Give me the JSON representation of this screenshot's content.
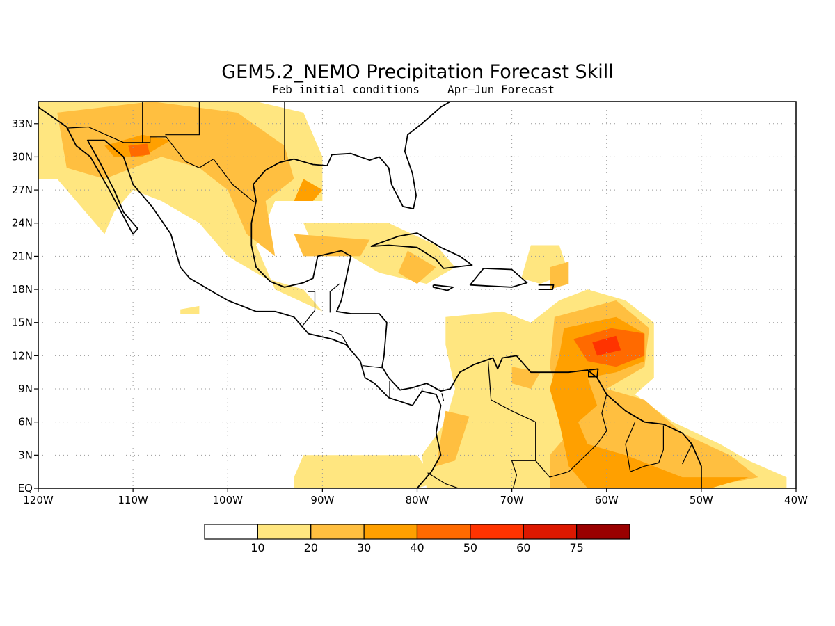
{
  "title": "GEM5.2_NEMO Precipitation Forecast Skill",
  "subtitle_left": "Feb initial conditions",
  "subtitle_right": "Apr–Jun Forecast",
  "map": {
    "lon_range": [
      -120,
      -40
    ],
    "lat_range": [
      0,
      35
    ],
    "x_ticks": [
      {
        "value": -120,
        "label": "120W"
      },
      {
        "value": -110,
        "label": "110W"
      },
      {
        "value": -100,
        "label": "100W"
      },
      {
        "value": -90,
        "label": "90W"
      },
      {
        "value": -80,
        "label": "80W"
      },
      {
        "value": -70,
        "label": "70W"
      },
      {
        "value": -60,
        "label": "60W"
      },
      {
        "value": -50,
        "label": "50W"
      },
      {
        "value": -40,
        "label": "40W"
      }
    ],
    "y_ticks": [
      {
        "value": 0,
        "label": "EQ"
      },
      {
        "value": 3,
        "label": "3N"
      },
      {
        "value": 6,
        "label": "6N"
      },
      {
        "value": 9,
        "label": "9N"
      },
      {
        "value": 12,
        "label": "12N"
      },
      {
        "value": 15,
        "label": "15N"
      },
      {
        "value": 18,
        "label": "18N"
      },
      {
        "value": 21,
        "label": "21N"
      },
      {
        "value": 24,
        "label": "24N"
      },
      {
        "value": 27,
        "label": "27N"
      },
      {
        "value": 30,
        "label": "30N"
      },
      {
        "value": 33,
        "label": "33N"
      }
    ],
    "grid": true
  },
  "colorbar": {
    "labels": [
      "10",
      "20",
      "30",
      "40",
      "50",
      "60",
      "75"
    ],
    "colors": [
      "#ffffff",
      "#ffe680",
      "#ffbf40",
      "#ffa000",
      "#ff6a00",
      "#ff3300",
      "#dd1800",
      "#9a0000"
    ]
  },
  "skill_regions": [
    {
      "level": 1,
      "points": [
        [
          -120,
          35
        ],
        [
          -97,
          35
        ],
        [
          -92,
          34
        ],
        [
          -90,
          30
        ],
        [
          -90,
          26
        ],
        [
          -95,
          26
        ],
        [
          -97,
          22
        ],
        [
          -95,
          18
        ],
        [
          -90,
          16
        ],
        [
          -92,
          18
        ],
        [
          -96,
          19
        ],
        [
          -100,
          21
        ],
        [
          -103,
          24
        ],
        [
          -107,
          26
        ],
        [
          -110,
          27
        ],
        [
          -112,
          25
        ],
        [
          -113,
          23
        ],
        [
          -116,
          26
        ],
        [
          -118,
          28
        ],
        [
          -120,
          28
        ]
      ]
    },
    {
      "level": 1,
      "points": [
        [
          -92,
          24
        ],
        [
          -83,
          24
        ],
        [
          -78,
          22
        ],
        [
          -76,
          20
        ],
        [
          -79,
          18.5
        ],
        [
          -84,
          19.5
        ],
        [
          -88,
          21.5
        ],
        [
          -91,
          22
        ]
      ]
    },
    {
      "level": 1,
      "points": [
        [
          -68,
          22
        ],
        [
          -65,
          22
        ],
        [
          -64,
          19.5
        ],
        [
          -67,
          18.5
        ],
        [
          -69,
          19
        ]
      ]
    },
    {
      "level": 1,
      "points": [
        [
          -77,
          15.5
        ],
        [
          -71,
          16
        ],
        [
          -68,
          15
        ],
        [
          -65,
          17
        ],
        [
          -62,
          18
        ],
        [
          -58,
          17
        ],
        [
          -55,
          15
        ],
        [
          -55,
          10
        ],
        [
          -57,
          8.5
        ],
        [
          -53,
          6
        ],
        [
          -48,
          4
        ],
        [
          -45,
          2.5
        ],
        [
          -41,
          1
        ],
        [
          -41,
          0
        ],
        [
          -79,
          0
        ],
        [
          -79.5,
          3
        ],
        [
          -77,
          6
        ],
        [
          -76,
          9
        ],
        [
          -77,
          13
        ]
      ]
    },
    {
      "level": 1,
      "points": [
        [
          -92,
          3
        ],
        [
          -80,
          3
        ],
        [
          -78,
          0.5
        ],
        [
          -80,
          0
        ],
        [
          -93,
          0
        ],
        [
          -93,
          1
        ]
      ]
    },
    {
      "level": 1,
      "points": [
        [
          -105,
          16.2
        ],
        [
          -103,
          16.5
        ],
        [
          -103,
          15.8
        ],
        [
          -105,
          15.8
        ]
      ]
    },
    {
      "level": 2,
      "points": [
        [
          -118,
          34
        ],
        [
          -108,
          35
        ],
        [
          -99,
          34
        ],
        [
          -94,
          31
        ],
        [
          -93,
          28
        ],
        [
          -96,
          26
        ],
        [
          -95,
          21
        ],
        [
          -98,
          23
        ],
        [
          -100,
          27
        ],
        [
          -103,
          29
        ],
        [
          -107,
          30
        ],
        [
          -110,
          29
        ],
        [
          -113,
          28
        ],
        [
          -117,
          29
        ]
      ]
    },
    {
      "level": 2,
      "points": [
        [
          -93,
          23
        ],
        [
          -85,
          22.5
        ],
        [
          -86,
          21
        ],
        [
          -92,
          21
        ]
      ]
    },
    {
      "level": 2,
      "points": [
        [
          -81,
          21.5
        ],
        [
          -78,
          20
        ],
        [
          -80,
          18.5
        ],
        [
          -82,
          19.5
        ]
      ]
    },
    {
      "level": 2,
      "points": [
        [
          -66,
          20
        ],
        [
          -64,
          20.5
        ],
        [
          -64,
          18.5
        ],
        [
          -66,
          18
        ]
      ]
    },
    {
      "level": 2,
      "points": [
        [
          -65.5,
          15.5
        ],
        [
          -59,
          17
        ],
        [
          -55.5,
          14.5
        ],
        [
          -56,
          11
        ],
        [
          -60,
          9
        ],
        [
          -56,
          8
        ],
        [
          -52,
          5
        ],
        [
          -47,
          3
        ],
        [
          -44,
          1
        ],
        [
          -50,
          0
        ],
        [
          -66,
          0
        ],
        [
          -66,
          3
        ],
        [
          -63,
          6
        ],
        [
          -65,
          8
        ],
        [
          -66,
          11
        ]
      ]
    },
    {
      "level": 2,
      "points": [
        [
          -77,
          7
        ],
        [
          -74.5,
          6.5
        ],
        [
          -76,
          2.5
        ],
        [
          -78,
          2
        ]
      ]
    },
    {
      "level": 2,
      "points": [
        [
          -70,
          11
        ],
        [
          -67,
          10.5
        ],
        [
          -68,
          9
        ],
        [
          -70,
          9.5
        ]
      ]
    },
    {
      "level": 3,
      "points": [
        [
          -113,
          31
        ],
        [
          -109,
          32
        ],
        [
          -106,
          31.5
        ],
        [
          -109,
          30
        ],
        [
          -112,
          30
        ]
      ]
    },
    {
      "level": 3,
      "points": [
        [
          -92,
          28
        ],
        [
          -90,
          27
        ],
        [
          -91,
          26
        ],
        [
          -93,
          26
        ]
      ]
    },
    {
      "level": 3,
      "points": [
        [
          -64.5,
          14.5
        ],
        [
          -59,
          15.5
        ],
        [
          -56,
          14
        ],
        [
          -56,
          11.5
        ],
        [
          -59,
          10.5
        ],
        [
          -62,
          10
        ],
        [
          -61,
          7.5
        ],
        [
          -63,
          6
        ],
        [
          -62,
          4
        ],
        [
          -58,
          3
        ],
        [
          -55,
          2
        ],
        [
          -52,
          1
        ],
        [
          -48,
          1
        ],
        [
          -45,
          1
        ],
        [
          -49,
          0
        ],
        [
          -62,
          0
        ],
        [
          -64,
          2
        ],
        [
          -65,
          6
        ],
        [
          -66,
          9
        ],
        [
          -65,
          12
        ]
      ]
    },
    {
      "level": 4,
      "points": [
        [
          -110.5,
          31
        ],
        [
          -108.5,
          31.2
        ],
        [
          -108.2,
          30.2
        ],
        [
          -110.2,
          30
        ]
      ]
    },
    {
      "level": 4,
      "points": [
        [
          -63.5,
          13.5
        ],
        [
          -59.5,
          14.5
        ],
        [
          -56,
          14
        ],
        [
          -56,
          12
        ],
        [
          -59,
          11
        ],
        [
          -62,
          11.5
        ]
      ]
    },
    {
      "level": 5,
      "points": [
        [
          -61.5,
          13.2
        ],
        [
          -59,
          13.8
        ],
        [
          -58.5,
          12.5
        ],
        [
          -61,
          12
        ]
      ]
    }
  ],
  "coastlines": [
    [
      [
        -120,
        34.5
      ],
      [
        -117,
        32.7
      ],
      [
        -116,
        31
      ],
      [
        -114.5,
        30
      ],
      [
        -112.5,
        27
      ],
      [
        -110,
        23
      ],
      [
        -109.5,
        23.5
      ],
      [
        -111,
        25
      ],
      [
        -112,
        27
      ],
      [
        -113.5,
        29.5
      ],
      [
        -114.8,
        31.5
      ],
      [
        -113,
        31.5
      ],
      [
        -111,
        30
      ],
      [
        -110,
        27.5
      ],
      [
        -108,
        25.5
      ],
      [
        -106,
        23
      ],
      [
        -105.5,
        21.5
      ],
      [
        -105,
        20
      ],
      [
        -104,
        19
      ],
      [
        -102,
        18
      ],
      [
        -100,
        17
      ],
      [
        -97,
        16
      ],
      [
        -95,
        16
      ],
      [
        -93,
        15.5
      ],
      [
        -91.5,
        14
      ],
      [
        -89,
        13.5
      ],
      [
        -87.5,
        13
      ],
      [
        -86,
        11.5
      ],
      [
        -85.5,
        10
      ],
      [
        -84.5,
        9.5
      ],
      [
        -83,
        8.2
      ],
      [
        -80.5,
        7.5
      ],
      [
        -79.5,
        8.8
      ],
      [
        -78,
        8.5
      ],
      [
        -77.5,
        7.5
      ],
      [
        -78,
        5
      ],
      [
        -77.5,
        3
      ],
      [
        -78.5,
        1.5
      ],
      [
        -80,
        0
      ]
    ],
    [
      [
        -97,
        26
      ],
      [
        -97.5,
        24
      ],
      [
        -97.5,
        22
      ],
      [
        -97,
        20
      ],
      [
        -95.5,
        18.7
      ],
      [
        -94,
        18.2
      ],
      [
        -92,
        18.6
      ],
      [
        -91,
        19
      ],
      [
        -90.5,
        21
      ],
      [
        -88,
        21.5
      ],
      [
        -87,
        21
      ],
      [
        -87.5,
        19
      ],
      [
        -88,
        17
      ],
      [
        -88.5,
        16
      ],
      [
        -87,
        15.8
      ],
      [
        -84,
        15.8
      ],
      [
        -83.2,
        15
      ],
      [
        -83.5,
        12
      ],
      [
        -83.7,
        11
      ],
      [
        -83,
        10
      ],
      [
        -81.8,
        8.9
      ],
      [
        -80.5,
        9.1
      ],
      [
        -79,
        9.5
      ],
      [
        -77.5,
        8.8
      ],
      [
        -76.5,
        9
      ],
      [
        -75.5,
        10.5
      ],
      [
        -74,
        11.2
      ],
      [
        -72,
        11.8
      ],
      [
        -71.5,
        10.8
      ],
      [
        -71,
        11.8
      ],
      [
        -69.5,
        12
      ],
      [
        -68,
        10.5
      ],
      [
        -66,
        10.5
      ],
      [
        -64,
        10.5
      ],
      [
        -62,
        10.7
      ],
      [
        -61,
        10
      ],
      [
        -60,
        8.5
      ],
      [
        -58,
        7
      ],
      [
        -56,
        6
      ],
      [
        -54,
        5.8
      ],
      [
        -52,
        5
      ],
      [
        -51,
        4
      ],
      [
        -50,
        2
      ],
      [
        -50,
        0
      ]
    ],
    [
      [
        -97,
        26
      ],
      [
        -97.3,
        27.5
      ],
      [
        -96,
        28.8
      ],
      [
        -94.5,
        29.5
      ],
      [
        -93,
        29.8
      ],
      [
        -91,
        29.3
      ],
      [
        -89.5,
        29.2
      ],
      [
        -89,
        30.2
      ],
      [
        -87,
        30.3
      ],
      [
        -85,
        29.7
      ],
      [
        -84,
        30
      ],
      [
        -83,
        29
      ],
      [
        -82.7,
        27.5
      ],
      [
        -81.5,
        25.5
      ],
      [
        -80.4,
        25.3
      ],
      [
        -80.1,
        26.5
      ],
      [
        -80.5,
        28.5
      ],
      [
        -81.3,
        30.5
      ],
      [
        -81,
        32
      ],
      [
        -79.5,
        33
      ],
      [
        -77.5,
        34.5
      ],
      [
        -76.5,
        35
      ]
    ],
    [
      [
        -84.9,
        21.9
      ],
      [
        -82,
        22.8
      ],
      [
        -80,
        23.1
      ],
      [
        -77.5,
        21.8
      ],
      [
        -75.5,
        21
      ],
      [
        -74.2,
        20.2
      ],
      [
        -77.2,
        19.9
      ],
      [
        -78,
        20.7
      ],
      [
        -80,
        21.8
      ],
      [
        -83,
        22
      ],
      [
        -84.9,
        21.9
      ]
    ],
    [
      [
        -73,
        19.9
      ],
      [
        -70,
        19.8
      ],
      [
        -68.4,
        18.6
      ],
      [
        -70,
        18.2
      ],
      [
        -72.3,
        18.3
      ],
      [
        -74.4,
        18.4
      ],
      [
        -73,
        19.9
      ]
    ],
    [
      [
        -67.2,
        18.4
      ],
      [
        -65.6,
        18.4
      ],
      [
        -65.7,
        18
      ],
      [
        -67.2,
        18
      ]
    ],
    [
      [
        -78.3,
        18.4
      ],
      [
        -76.2,
        18.2
      ],
      [
        -76.8,
        17.9
      ],
      [
        -78.3,
        18.2
      ],
      [
        -78.3,
        18.4
      ]
    ],
    [
      [
        -61.9,
        10.7
      ],
      [
        -60.9,
        10.8
      ],
      [
        -61,
        10.1
      ],
      [
        -61.9,
        10.1
      ],
      [
        -61.9,
        10.7
      ]
    ]
  ],
  "borders": [
    [
      [
        -117,
        32.6
      ],
      [
        -114.7,
        32.7
      ],
      [
        -111,
        31.3
      ],
      [
        -108.2,
        31.3
      ],
      [
        -108.2,
        31.8
      ],
      [
        -106.5,
        31.8
      ],
      [
        -104.5,
        29.6
      ],
      [
        -103,
        29
      ],
      [
        -101.5,
        29.8
      ],
      [
        -99.5,
        27.5
      ],
      [
        -97.2,
        25.9
      ]
    ],
    [
      [
        -109,
        35
      ],
      [
        -109,
        31.3
      ]
    ],
    [
      [
        -103,
        35
      ],
      [
        -103,
        32
      ],
      [
        -106.6,
        32
      ]
    ],
    [
      [
        -94,
        35
      ],
      [
        -94,
        33.5
      ],
      [
        -94,
        29.7
      ]
    ],
    [
      [
        -91.5,
        17.8
      ],
      [
        -90.8,
        17.8
      ],
      [
        -90.8,
        16.1
      ],
      [
        -92.2,
        14.6
      ]
    ],
    [
      [
        -89.2,
        15.9
      ],
      [
        -89.2,
        17.8
      ],
      [
        -88.2,
        18.5
      ]
    ],
    [
      [
        -89.3,
        14.3
      ],
      [
        -88,
        13.9
      ],
      [
        -87.3,
        12.9
      ]
    ],
    [
      [
        -85.7,
        11.1
      ],
      [
        -83.7,
        10.9
      ]
    ],
    [
      [
        -82.9,
        9.7
      ],
      [
        -82.9,
        8.1
      ]
    ],
    [
      [
        -77.4,
        8.6
      ],
      [
        -77.2,
        7.9
      ]
    ],
    [
      [
        -72.5,
        11.5
      ],
      [
        -72.2,
        8
      ],
      [
        -70,
        7
      ],
      [
        -67.5,
        6
      ],
      [
        -67.5,
        2.5
      ],
      [
        -66,
        1
      ],
      [
        -64,
        1.5
      ],
      [
        -61,
        4
      ],
      [
        -60,
        5.2
      ],
      [
        -60.5,
        6.8
      ],
      [
        -60,
        8.5
      ]
    ],
    [
      [
        -57,
        6
      ],
      [
        -58,
        4
      ],
      [
        -57.5,
        1.5
      ],
      [
        -56,
        2
      ],
      [
        -54.5,
        2.3
      ],
      [
        -54,
        3.5
      ],
      [
        -54,
        5.7
      ]
    ],
    [
      [
        -52,
        2.2
      ],
      [
        -51,
        4
      ]
    ],
    [
      [
        -70,
        -0.5
      ],
      [
        -69.5,
        1.2
      ],
      [
        -70,
        2.5
      ],
      [
        -67.5,
        2.5
      ]
    ],
    [
      [
        -78.9,
        1.4
      ],
      [
        -77,
        0.4
      ],
      [
        -75.3,
        -0.1
      ]
    ]
  ]
}
